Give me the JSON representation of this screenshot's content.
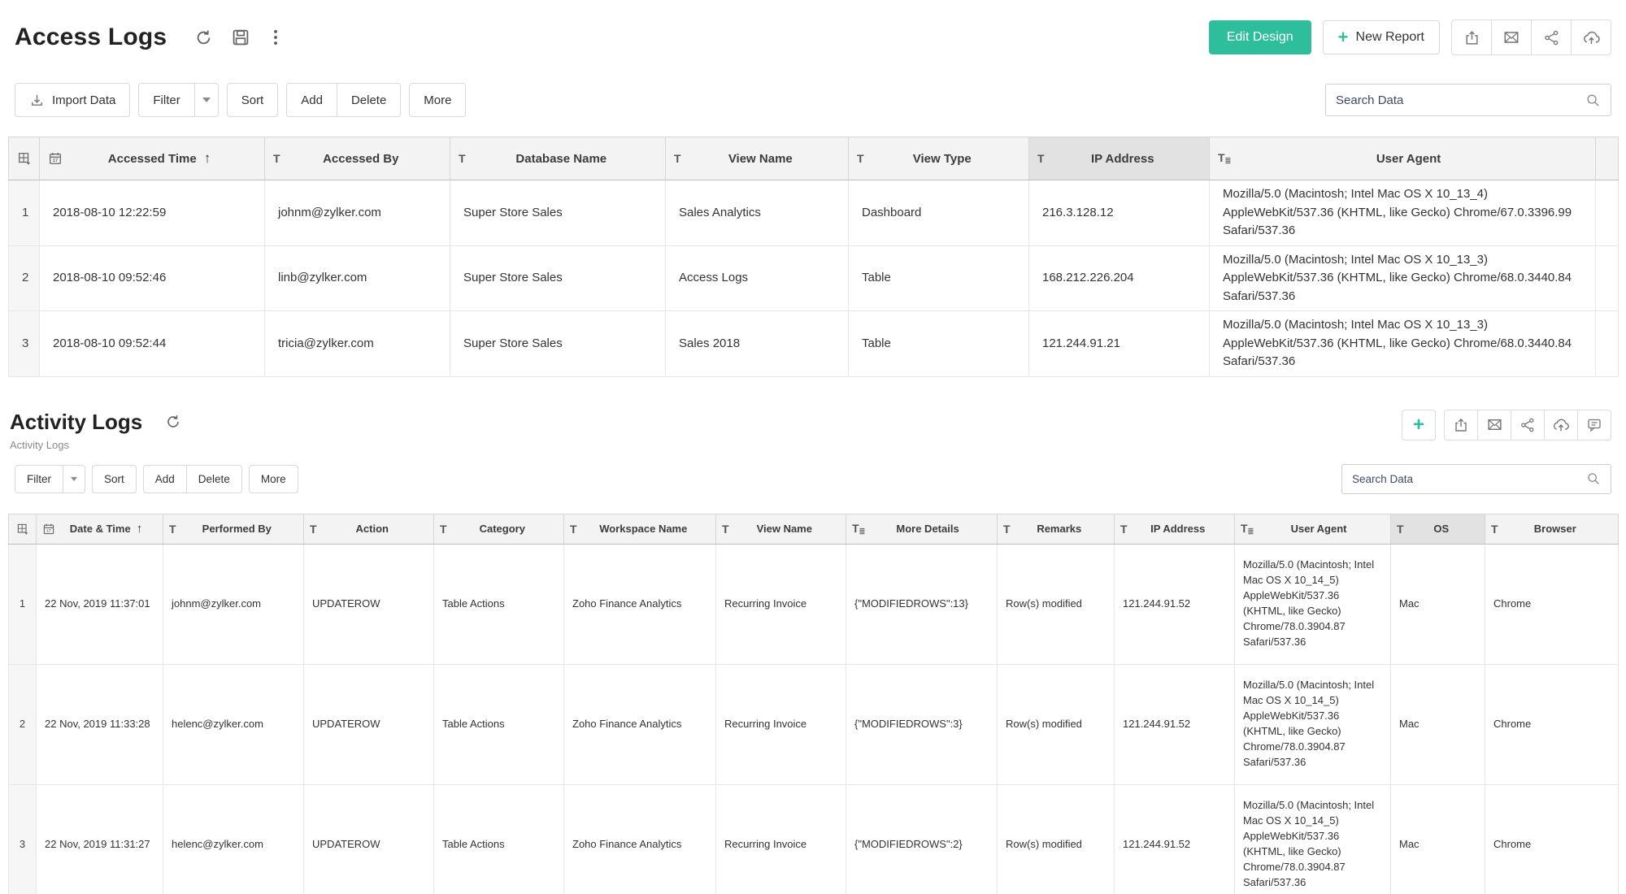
{
  "colors": {
    "accent_green": "#2EBE9B",
    "header_bg": "#f3f3f3",
    "selected_column_bg": "#e2e2e2"
  },
  "access_logs": {
    "title": "Access Logs",
    "edit_design_label": "Edit Design",
    "new_report_label": "New Report",
    "toolbar": {
      "import_label": "Import Data",
      "filter_label": "Filter",
      "sort_label": "Sort",
      "add_label": "Add",
      "delete_label": "Delete",
      "more_label": "More"
    },
    "search_placeholder": "Search Data",
    "columns": [
      "Accessed Time",
      "Accessed By",
      "Database Name",
      "View Name",
      "View Type",
      "IP Address",
      "User Agent"
    ],
    "rows": [
      [
        "1",
        "2018-08-10 12:22:59",
        "johnm@zylker.com",
        "Super Store Sales",
        "Sales Analytics",
        "Dashboard",
        "216.3.128.12",
        "Mozilla/5.0 (Macintosh; Intel Mac OS X 10_13_4) AppleWebKit/537.36 (KHTML, like Gecko) Chrome/67.0.3396.99 Safari/537.36"
      ],
      [
        "2",
        "2018-08-10 09:52:46",
        "linb@zylker.com",
        "Super Store Sales",
        "Access Logs",
        "Table",
        "168.212.226.204",
        "Mozilla/5.0 (Macintosh; Intel Mac OS X 10_13_3) AppleWebKit/537.36 (KHTML, like Gecko) Chrome/68.0.3440.84 Safari/537.36"
      ],
      [
        "3",
        "2018-08-10 09:52:44",
        "tricia@zylker.com",
        "Super Store Sales",
        "Sales 2018",
        "Table",
        "121.244.91.21",
        "Mozilla/5.0 (Macintosh; Intel Mac OS X 10_13_3) AppleWebKit/537.36 (KHTML, like Gecko) Chrome/68.0.3440.84 Safari/537.36"
      ]
    ]
  },
  "activity_logs": {
    "title": "Activity Logs",
    "subtitle": "Activity Logs",
    "toolbar": {
      "filter_label": "Filter",
      "sort_label": "Sort",
      "add_label": "Add",
      "delete_label": "Delete",
      "more_label": "More"
    },
    "search_placeholder": "Search Data",
    "columns": [
      "Date & Time",
      "Performed By",
      "Action",
      "Category",
      "Workspace Name",
      "View Name",
      "More Details",
      "Remarks",
      "IP Address",
      "User Agent",
      "OS",
      "Browser"
    ],
    "rows": [
      [
        "1",
        "22 Nov, 2019 11:37:01",
        "johnm@zylker.com",
        "UPDATEROW",
        "Table Actions",
        "Zoho Finance Analytics",
        "Recurring Invoice",
        "{\"MODIFIEDROWS\":13}",
        "Row(s) modified",
        "121.244.91.52",
        "Mozilla/5.0 (Macintosh; Intel Mac OS X 10_14_5) AppleWebKit/537.36 (KHTML, like Gecko) Chrome/78.0.3904.87 Safari/537.36",
        "Mac",
        "Chrome"
      ],
      [
        "2",
        "22 Nov, 2019 11:33:28",
        "helenc@zylker.com",
        "UPDATEROW",
        "Table Actions",
        "Zoho Finance Analytics",
        "Recurring Invoice",
        "{\"MODIFIEDROWS\":3}",
        "Row(s) modified",
        "121.244.91.52",
        "Mozilla/5.0 (Macintosh; Intel Mac OS X 10_14_5) AppleWebKit/537.36 (KHTML, like Gecko) Chrome/78.0.3904.87 Safari/537.36",
        "Mac",
        "Chrome"
      ],
      [
        "3",
        "22 Nov, 2019 11:31:27",
        "helenc@zylker.com",
        "UPDATEROW",
        "Table Actions",
        "Zoho Finance Analytics",
        "Recurring Invoice",
        "{\"MODIFIEDROWS\":2}",
        "Row(s) modified",
        "121.244.91.52",
        "Mozilla/5.0 (Macintosh; Intel Mac OS X 10_14_5) AppleWebKit/537.36 (KHTML, like Gecko) Chrome/78.0.3904.87 Safari/537.36",
        "Mac",
        "Chrome"
      ]
    ]
  }
}
